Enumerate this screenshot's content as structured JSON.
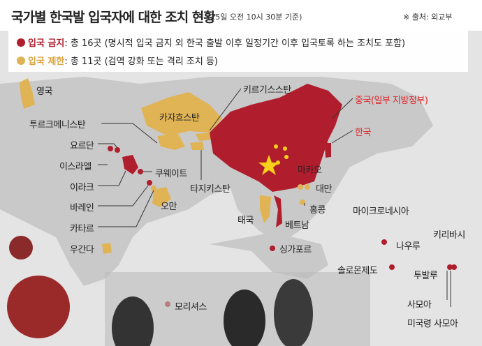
{
  "header": {
    "title": "국가별 한국발 입국자에 대한 조치 현황",
    "as_of": "(25일 오전 10시 30분 기준)",
    "source": "※ 출처: 외교부"
  },
  "legend": [
    {
      "key": "입국 금지",
      "text": ": 총 16곳 (명시적 입국 금지 외 한국 출발 이후 일정기간 이후 입국토록 하는 조치도 포함)",
      "color": "#b01e2d"
    },
    {
      "key": "입국 제한",
      "text": ": 총 11곳 (검역 강화 또는 격리 조치 등)",
      "color": "#e0b354"
    }
  ],
  "labels": {
    "uk": "영국",
    "kazakhstan": "카자흐스탄",
    "kyrgyzstan": "키르기스스탄",
    "china": "중국(일부 지방정부)",
    "korea": "한국",
    "turkmenistan": "투르크메니스탄",
    "jordan": "요르단",
    "israel": "이스라엘",
    "kuwait": "쿠웨이트",
    "iraq": "이라크",
    "bahrain": "바레인",
    "oman": "오만",
    "qatar": "카타르",
    "tajikistan": "타지키스탄",
    "macau": "마카오",
    "taiwan": "대만",
    "hongkong": "홍콩",
    "thailand": "태국",
    "vietnam": "베트남",
    "micronesia": "마이크로네시아",
    "singapore": "싱가포르",
    "kiribati": "키리바시",
    "nauru": "나우루",
    "uganda": "우간다",
    "solomon": "솔로몬제도",
    "tuvalu": "투발루",
    "mauritius": "모리셔스",
    "samoa": "사모아",
    "american_samoa": "미국령 사모아"
  },
  "colors": {
    "ban": "#b01e2d",
    "restrict": "#e0b354",
    "highlight_text": "#e0262b",
    "land": "#c8c8c8",
    "sea": "#e4e4e4"
  }
}
